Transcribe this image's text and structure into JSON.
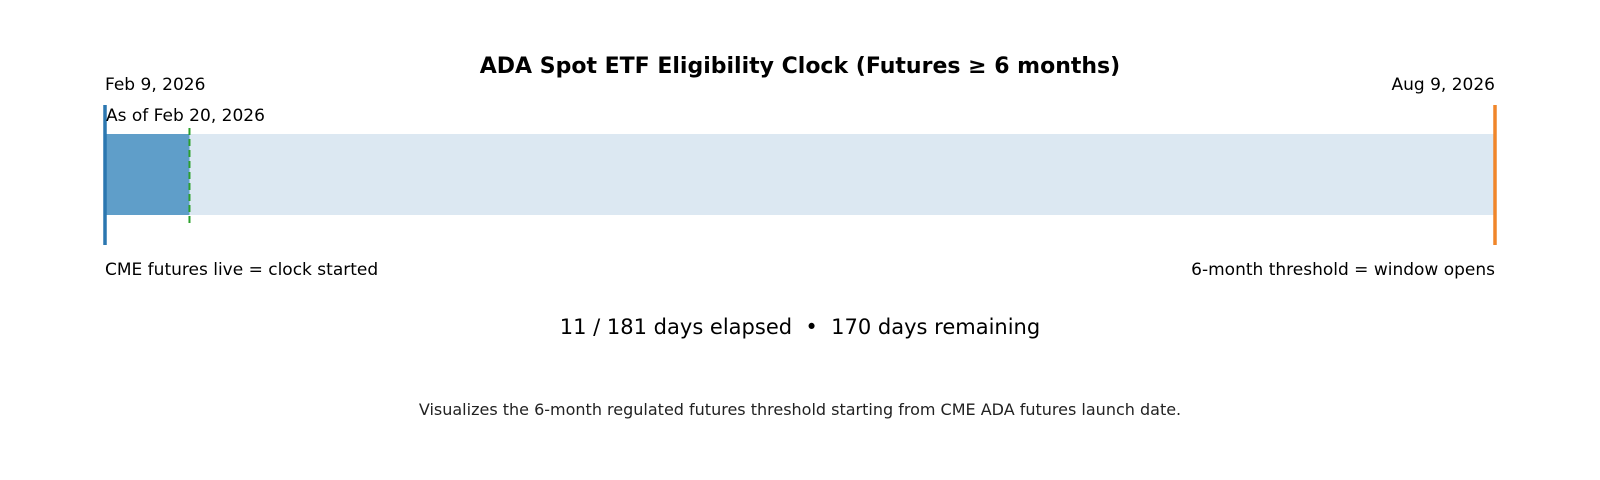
{
  "chart_data": {
    "type": "bar",
    "title": "ADA Spot ETF Eligibility Clock (Futures ≥ 6 months)",
    "start_date": "Feb 9, 2026",
    "end_date": "Aug 9, 2026",
    "as_of_label": "As of Feb 20, 2026",
    "start_caption": "CME futures live = clock started",
    "end_caption": "6-month threshold = window opens",
    "days_elapsed": 11,
    "days_total": 181,
    "days_remaining": 170,
    "summary": "11 / 181 days elapsed  •  170 days remaining",
    "footnote": "Visualizes the 6-month regulated futures threshold starting from CME ADA futures launch date.",
    "colors": {
      "elapsed": "#5f9ec9",
      "remaining": "#dce8f2",
      "start_line": "#2b77b0",
      "end_line": "#f0862a",
      "today_line": "#2ca02c"
    }
  }
}
